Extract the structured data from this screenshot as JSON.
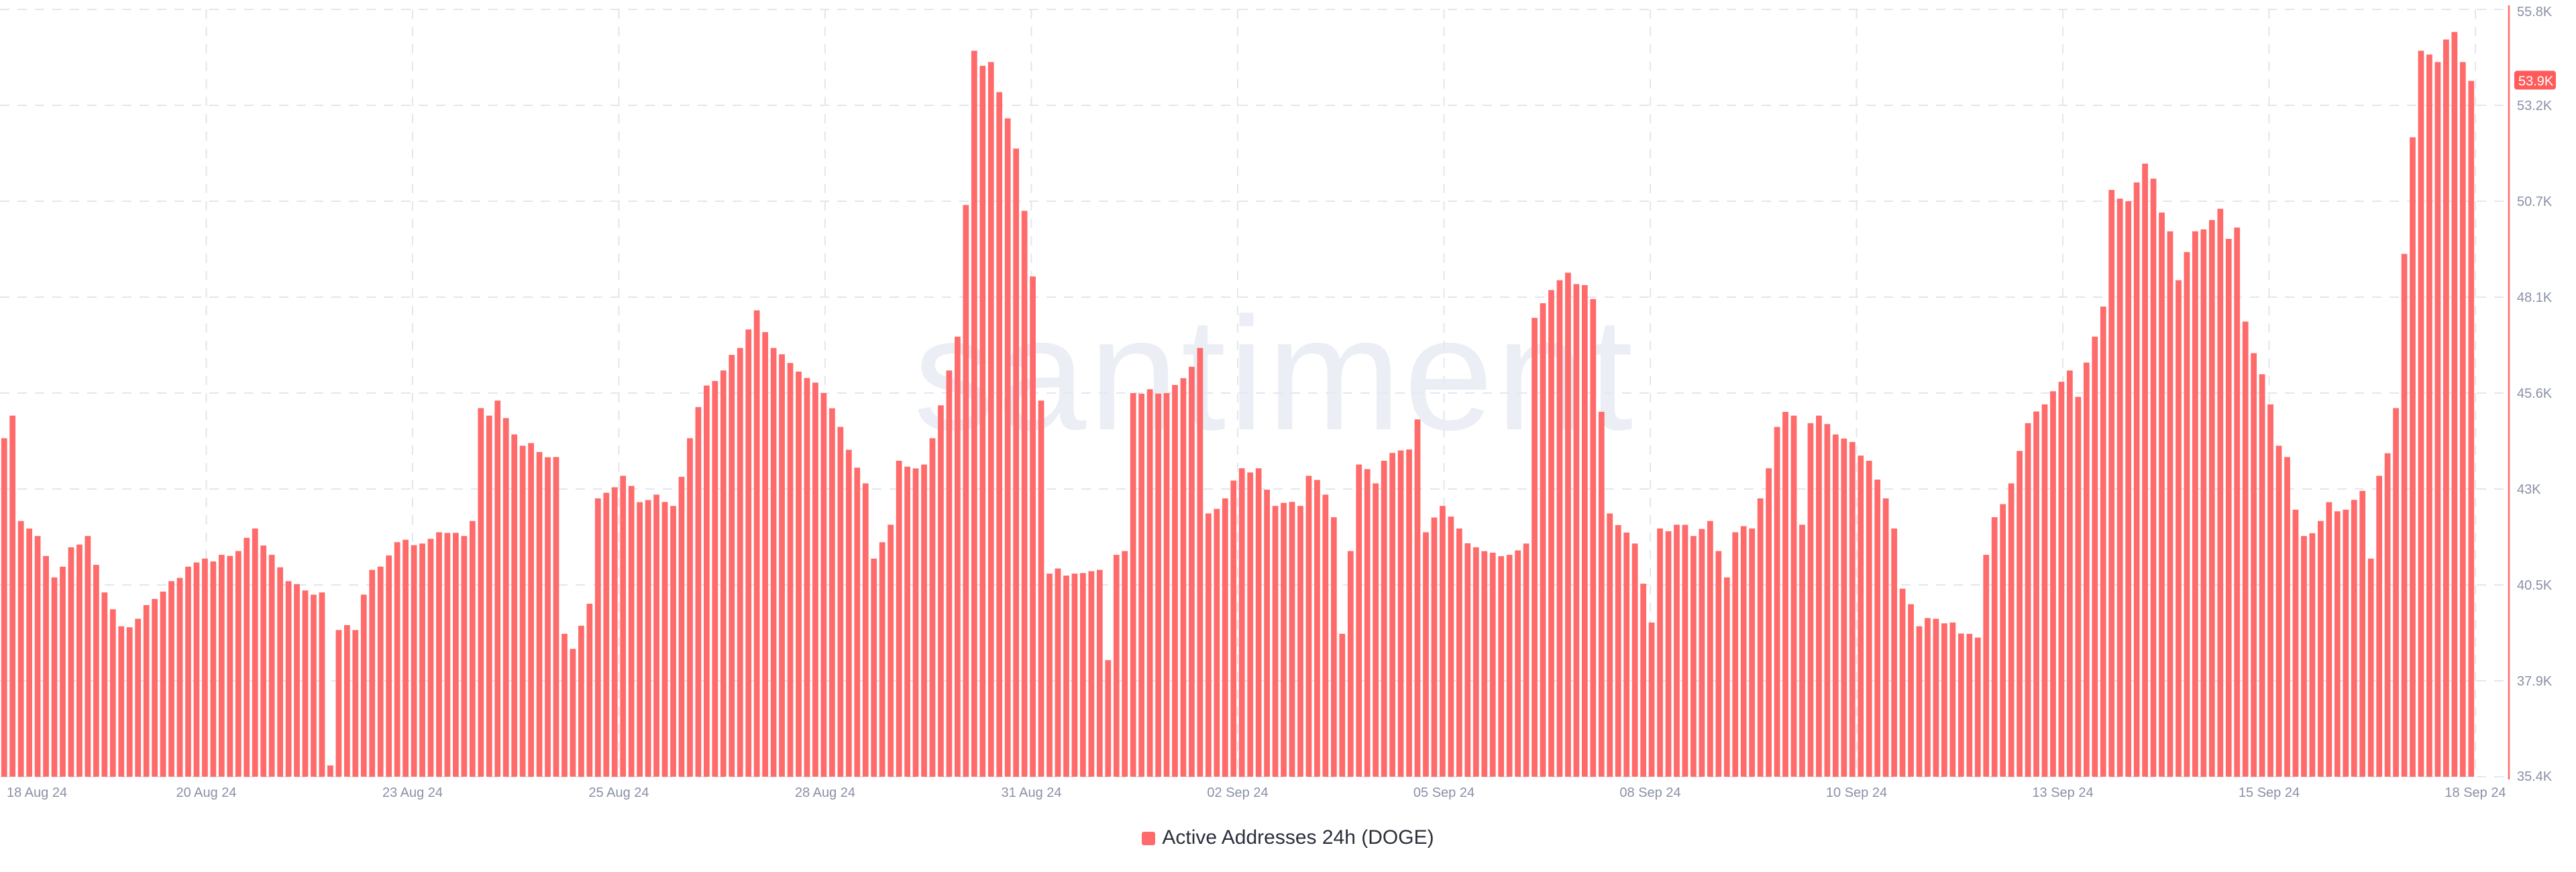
{
  "chart_data": {
    "type": "bar",
    "title": "",
    "watermark": "santiment",
    "xlabel": "",
    "ylabel": "",
    "ylim": [
      35400,
      55800
    ],
    "y_ticks": [
      "35.4K",
      "37.9K",
      "40.5K",
      "43K",
      "45.6K",
      "48.1K",
      "50.7K",
      "53.2K",
      "55.8K"
    ],
    "y_tick_values": [
      35400,
      37950,
      40500,
      43050,
      45600,
      48150,
      50700,
      53250,
      55800
    ],
    "x_ticks": [
      "18 Aug 24",
      "20 Aug 24",
      "23 Aug 24",
      "25 Aug 24",
      "28 Aug 24",
      "31 Aug 24",
      "02 Sep 24",
      "05 Sep 24",
      "08 Sep 24",
      "10 Sep 24",
      "13 Sep 24",
      "15 Sep 24",
      "18 Sep 24"
    ],
    "grid": true,
    "legend": {
      "position": "bottom",
      "entries": [
        "Active Addresses 24h (DOGE)"
      ]
    },
    "current_value_label": "53.9K",
    "current_value": 53900,
    "series_color": "#ff6a6a",
    "series": [
      {
        "name": "Active Addresses 24h (DOGE)",
        "keypoints": [
          [
            0,
            44400
          ],
          [
            1,
            45000
          ],
          [
            2,
            42200
          ],
          [
            4,
            41800
          ],
          [
            6,
            40700
          ],
          [
            8,
            41500
          ],
          [
            10,
            41800
          ],
          [
            12,
            40300
          ],
          [
            14,
            39400
          ],
          [
            16,
            39600
          ],
          [
            20,
            40600
          ],
          [
            24,
            41200
          ],
          [
            28,
            41400
          ],
          [
            30,
            42000
          ],
          [
            32,
            41300
          ],
          [
            34,
            40600
          ],
          [
            38,
            40300
          ],
          [
            39,
            35700
          ],
          [
            40,
            39300
          ],
          [
            42,
            39300
          ],
          [
            44,
            40900
          ],
          [
            48,
            41700
          ],
          [
            50,
            41600
          ],
          [
            52,
            41900
          ],
          [
            55,
            41800
          ],
          [
            56,
            42200
          ],
          [
            57,
            45200
          ],
          [
            58,
            45000
          ],
          [
            59,
            45400
          ],
          [
            62,
            44200
          ],
          [
            66,
            43900
          ],
          [
            67,
            39200
          ],
          [
            68,
            38800
          ],
          [
            70,
            40000
          ],
          [
            71,
            42800
          ],
          [
            74,
            43400
          ],
          [
            76,
            42700
          ],
          [
            78,
            42900
          ],
          [
            80,
            42600
          ],
          [
            82,
            44400
          ],
          [
            84,
            45800
          ],
          [
            86,
            46200
          ],
          [
            88,
            46800
          ],
          [
            90,
            47800
          ],
          [
            92,
            46800
          ],
          [
            94,
            46400
          ],
          [
            96,
            46000
          ],
          [
            98,
            45600
          ],
          [
            100,
            44700
          ],
          [
            103,
            43200
          ],
          [
            104,
            41200
          ],
          [
            106,
            42100
          ],
          [
            107,
            43800
          ],
          [
            110,
            43700
          ],
          [
            111,
            44400
          ],
          [
            113,
            46200
          ],
          [
            114,
            47100
          ],
          [
            115,
            50600
          ],
          [
            116,
            54700
          ],
          [
            117,
            54300
          ],
          [
            118,
            54400
          ],
          [
            119,
            53600
          ],
          [
            121,
            52100
          ],
          [
            123,
            48700
          ],
          [
            124,
            45400
          ],
          [
            125,
            40800
          ],
          [
            128,
            40800
          ],
          [
            131,
            40900
          ],
          [
            132,
            38500
          ],
          [
            133,
            41300
          ],
          [
            134,
            41400
          ],
          [
            135,
            45600
          ],
          [
            139,
            45600
          ],
          [
            142,
            46300
          ],
          [
            143,
            46800
          ],
          [
            144,
            42400
          ],
          [
            146,
            42800
          ],
          [
            148,
            43600
          ],
          [
            150,
            43600
          ],
          [
            152,
            42600
          ],
          [
            155,
            42600
          ],
          [
            156,
            43400
          ],
          [
            158,
            42900
          ],
          [
            159,
            42300
          ],
          [
            160,
            39200
          ],
          [
            161,
            41400
          ],
          [
            162,
            43700
          ],
          [
            164,
            43200
          ],
          [
            165,
            43800
          ],
          [
            168,
            44100
          ],
          [
            169,
            44900
          ],
          [
            170,
            41900
          ],
          [
            172,
            42600
          ],
          [
            174,
            42000
          ],
          [
            176,
            41500
          ],
          [
            180,
            41300
          ],
          [
            182,
            41600
          ],
          [
            183,
            47600
          ],
          [
            186,
            48600
          ],
          [
            187,
            48800
          ],
          [
            190,
            48100
          ],
          [
            192,
            42400
          ],
          [
            195,
            41600
          ],
          [
            197,
            39500
          ],
          [
            198,
            42000
          ],
          [
            200,
            42100
          ],
          [
            202,
            41800
          ],
          [
            204,
            42200
          ],
          [
            205,
            41400
          ],
          [
            206,
            40700
          ],
          [
            207,
            41900
          ],
          [
            209,
            42000
          ],
          [
            210,
            42800
          ],
          [
            211,
            43600
          ],
          [
            212,
            44700
          ],
          [
            213,
            45100
          ],
          [
            214,
            45000
          ],
          [
            215,
            42100
          ],
          [
            216,
            44800
          ],
          [
            217,
            45000
          ],
          [
            219,
            44500
          ],
          [
            221,
            44300
          ],
          [
            223,
            43800
          ],
          [
            224,
            43300
          ],
          [
            225,
            42800
          ],
          [
            226,
            42000
          ],
          [
            227,
            40400
          ],
          [
            229,
            39400
          ],
          [
            231,
            39600
          ],
          [
            233,
            39500
          ],
          [
            235,
            39200
          ],
          [
            236,
            39100
          ],
          [
            237,
            41300
          ],
          [
            238,
            42300
          ],
          [
            240,
            43200
          ],
          [
            242,
            44800
          ],
          [
            244,
            45300
          ],
          [
            246,
            45900
          ],
          [
            247,
            46200
          ],
          [
            248,
            45500
          ],
          [
            250,
            47100
          ],
          [
            251,
            47900
          ],
          [
            252,
            51000
          ],
          [
            254,
            50700
          ],
          [
            255,
            51200
          ],
          [
            256,
            51700
          ],
          [
            257,
            51300
          ],
          [
            258,
            50400
          ],
          [
            259,
            49900
          ],
          [
            260,
            48600
          ],
          [
            262,
            49900
          ],
          [
            264,
            50200
          ],
          [
            265,
            50500
          ],
          [
            266,
            49700
          ],
          [
            267,
            50000
          ],
          [
            268,
            47500
          ],
          [
            270,
            46100
          ],
          [
            271,
            45300
          ],
          [
            272,
            44200
          ],
          [
            273,
            43900
          ],
          [
            274,
            42500
          ],
          [
            275,
            41800
          ],
          [
            277,
            42200
          ],
          [
            278,
            42700
          ],
          [
            280,
            42500
          ],
          [
            282,
            43000
          ],
          [
            283,
            41200
          ],
          [
            284,
            43400
          ],
          [
            285,
            44000
          ],
          [
            286,
            45200
          ],
          [
            287,
            49300
          ],
          [
            288,
            52400
          ],
          [
            289,
            54700
          ],
          [
            290,
            54600
          ],
          [
            291,
            54400
          ],
          [
            292,
            55000
          ],
          [
            293,
            55200
          ],
          [
            294,
            54400
          ],
          [
            295,
            53900
          ]
        ]
      }
    ]
  }
}
